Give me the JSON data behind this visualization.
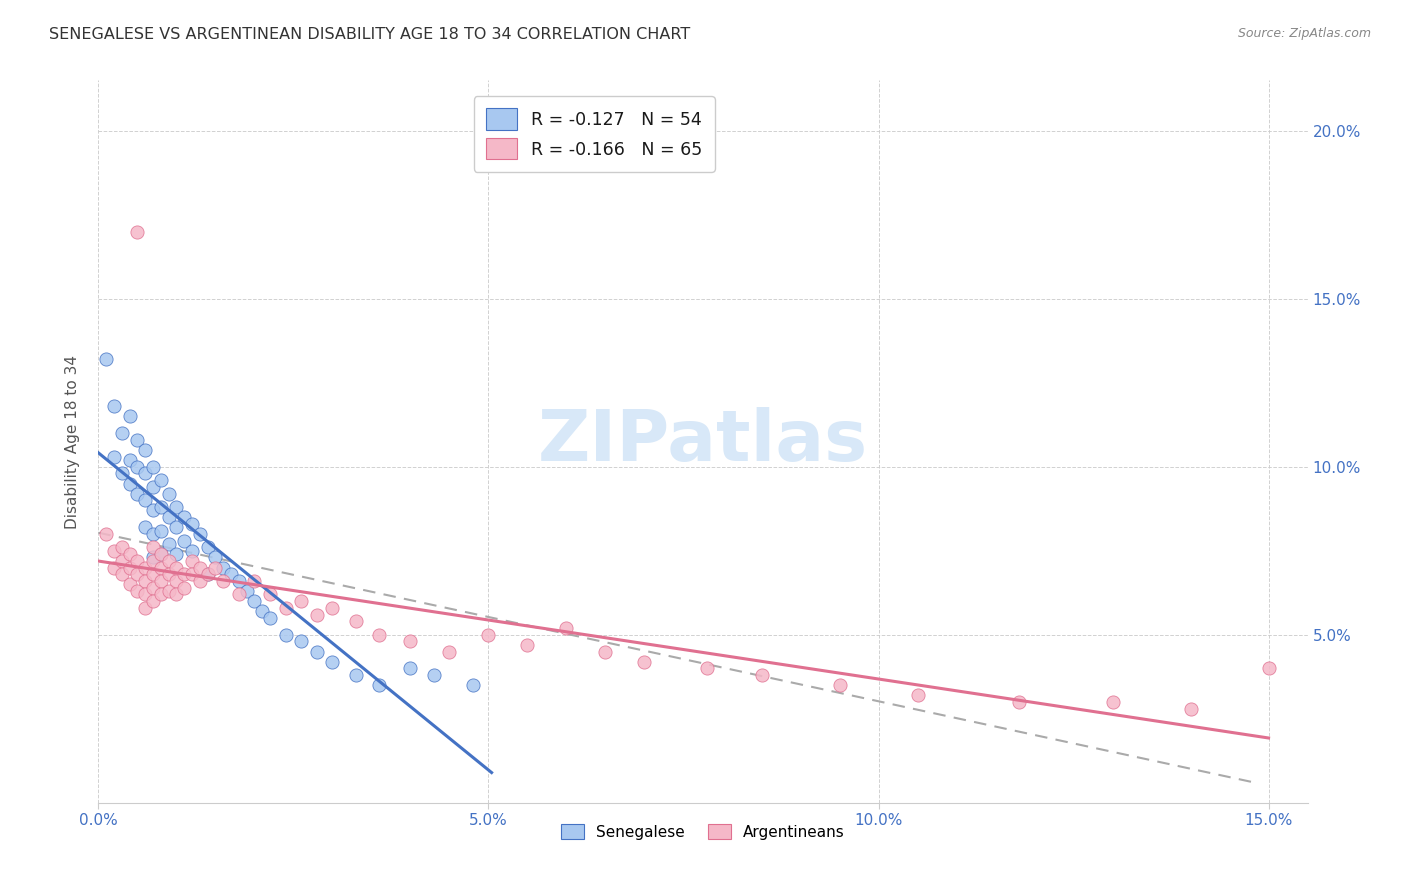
{
  "title": "SENEGALESE VS ARGENTINEAN DISABILITY AGE 18 TO 34 CORRELATION CHART",
  "source": "Source: ZipAtlas.com",
  "ylabel_label": "Disability Age 18 to 34",
  "xlim": [
    0.0,
    0.155
  ],
  "ylim": [
    0.0,
    0.215
  ],
  "x_tick_vals": [
    0.0,
    0.05,
    0.1,
    0.15
  ],
  "x_tick_labels": [
    "0.0%",
    "5.0%",
    "10.0%",
    "15.0%"
  ],
  "y_tick_vals": [
    0.05,
    0.1,
    0.15,
    0.2
  ],
  "y_tick_labels": [
    "5.0%",
    "10.0%",
    "15.0%",
    "20.0%"
  ],
  "legend_r1": "-0.127",
  "legend_n1": "54",
  "legend_r2": "-0.166",
  "legend_n2": "65",
  "color_senegalese_fill": "#A8C8F0",
  "color_senegalese_edge": "#4472C4",
  "color_argentinean_fill": "#F5B8C8",
  "color_argentinean_edge": "#E07090",
  "color_line_senegalese": "#4472C4",
  "color_line_argentinean": "#E07090",
  "color_trendline_dashed": "#AAAAAA",
  "color_axis_ticks": "#4472C4",
  "color_title": "#333333",
  "color_source": "#888888",
  "watermark_text": "ZIPatlas",
  "watermark_color": "#D8E8F8",
  "senegalese_x": [
    0.001,
    0.002,
    0.002,
    0.003,
    0.003,
    0.004,
    0.004,
    0.004,
    0.005,
    0.005,
    0.005,
    0.006,
    0.006,
    0.006,
    0.006,
    0.007,
    0.007,
    0.007,
    0.007,
    0.007,
    0.008,
    0.008,
    0.008,
    0.008,
    0.009,
    0.009,
    0.009,
    0.01,
    0.01,
    0.01,
    0.011,
    0.011,
    0.012,
    0.012,
    0.013,
    0.014,
    0.014,
    0.015,
    0.016,
    0.017,
    0.018,
    0.019,
    0.02,
    0.021,
    0.022,
    0.024,
    0.026,
    0.028,
    0.03,
    0.033,
    0.036,
    0.04,
    0.043,
    0.048
  ],
  "senegalese_y": [
    0.132,
    0.118,
    0.103,
    0.11,
    0.098,
    0.115,
    0.102,
    0.095,
    0.108,
    0.1,
    0.092,
    0.105,
    0.098,
    0.09,
    0.082,
    0.1,
    0.094,
    0.087,
    0.08,
    0.073,
    0.096,
    0.088,
    0.081,
    0.074,
    0.092,
    0.085,
    0.077,
    0.088,
    0.082,
    0.074,
    0.085,
    0.078,
    0.083,
    0.075,
    0.08,
    0.076,
    0.068,
    0.073,
    0.07,
    0.068,
    0.066,
    0.063,
    0.06,
    0.057,
    0.055,
    0.05,
    0.048,
    0.045,
    0.042,
    0.038,
    0.035,
    0.04,
    0.038,
    0.035
  ],
  "argentinean_x": [
    0.001,
    0.002,
    0.002,
    0.003,
    0.003,
    0.003,
    0.004,
    0.004,
    0.004,
    0.005,
    0.005,
    0.005,
    0.005,
    0.006,
    0.006,
    0.006,
    0.006,
    0.007,
    0.007,
    0.007,
    0.007,
    0.007,
    0.008,
    0.008,
    0.008,
    0.008,
    0.009,
    0.009,
    0.009,
    0.01,
    0.01,
    0.01,
    0.011,
    0.011,
    0.012,
    0.012,
    0.013,
    0.013,
    0.014,
    0.015,
    0.016,
    0.018,
    0.02,
    0.022,
    0.024,
    0.026,
    0.028,
    0.03,
    0.033,
    0.036,
    0.04,
    0.045,
    0.05,
    0.055,
    0.06,
    0.065,
    0.07,
    0.078,
    0.085,
    0.095,
    0.105,
    0.118,
    0.13,
    0.14,
    0.15
  ],
  "argentinean_y": [
    0.08,
    0.075,
    0.07,
    0.076,
    0.072,
    0.068,
    0.074,
    0.07,
    0.065,
    0.072,
    0.068,
    0.063,
    0.17,
    0.07,
    0.066,
    0.062,
    0.058,
    0.076,
    0.072,
    0.068,
    0.064,
    0.06,
    0.074,
    0.07,
    0.066,
    0.062,
    0.072,
    0.068,
    0.063,
    0.07,
    0.066,
    0.062,
    0.068,
    0.064,
    0.072,
    0.068,
    0.07,
    0.066,
    0.068,
    0.07,
    0.066,
    0.062,
    0.066,
    0.062,
    0.058,
    0.06,
    0.056,
    0.058,
    0.054,
    0.05,
    0.048,
    0.045,
    0.05,
    0.047,
    0.052,
    0.045,
    0.042,
    0.04,
    0.038,
    0.035,
    0.032,
    0.03,
    0.03,
    0.028,
    0.04
  ]
}
